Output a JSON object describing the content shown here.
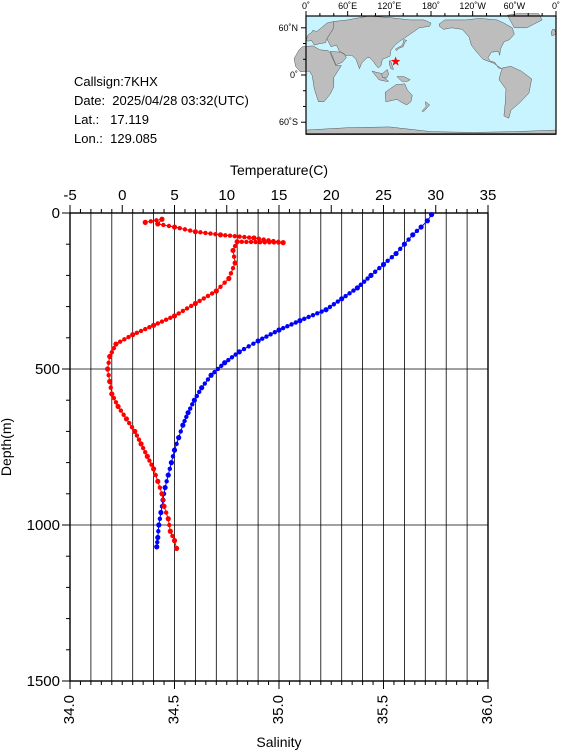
{
  "info": {
    "callsign": "Callsign:7KHX",
    "date": "Date:  2025/04/28 03:32(UTC)",
    "lat": "Lat.:   17.119",
    "lon": "Lon.:  129.085"
  },
  "map": {
    "lon_ticks": [
      "0˚",
      "60˚E",
      "120˚E",
      "180˚",
      "120˚W",
      "60˚W",
      "0˚"
    ],
    "lat_ticks": [
      "60˚N",
      "0˚",
      "60˚S"
    ],
    "ocean_color": "#c8f4ff",
    "land_color": "#bdbdbd",
    "marker": {
      "lon": 129.085,
      "lat": 17.119,
      "color": "#ff0000",
      "icon": "star-icon"
    }
  },
  "chart_data": {
    "type": "line",
    "title": "",
    "temperature_axis": {
      "label": "Temperature(C)",
      "range": [
        -5,
        35
      ],
      "ticks": [
        "-5",
        "0",
        "5",
        "10",
        "15",
        "20",
        "25",
        "30",
        "35"
      ]
    },
    "salinity_axis": {
      "label": "Salinity",
      "range": [
        34.0,
        36.0
      ],
      "ticks": [
        "34.0",
        "34.5",
        "35.0",
        "35.5",
        "36.0"
      ]
    },
    "depth_axis": {
      "label": "Depth(m)",
      "range": [
        0,
        1500
      ],
      "ticks": [
        "0",
        "500",
        "1000",
        "1500"
      ]
    },
    "grid": true,
    "series": [
      {
        "name": "",
        "quantity": "temperature",
        "color": "#0000ff",
        "points": [
          [
            29.6,
            5
          ],
          [
            29.2,
            25
          ],
          [
            28.6,
            45
          ],
          [
            27.8,
            70
          ],
          [
            27.0,
            100
          ],
          [
            26.2,
            130
          ],
          [
            25.0,
            165
          ],
          [
            23.8,
            200
          ],
          [
            22.5,
            240
          ],
          [
            21.0,
            275
          ],
          [
            19.5,
            310
          ],
          [
            17.0,
            345
          ],
          [
            15.0,
            375
          ],
          [
            13.0,
            410
          ],
          [
            11.2,
            445
          ],
          [
            9.8,
            480
          ],
          [
            8.5,
            520
          ],
          [
            7.6,
            560
          ],
          [
            6.9,
            600
          ],
          [
            6.3,
            640
          ],
          [
            5.8,
            680
          ],
          [
            5.4,
            720
          ],
          [
            5.0,
            760
          ],
          [
            4.7,
            800
          ],
          [
            4.4,
            840
          ],
          [
            4.1,
            880
          ],
          [
            3.9,
            920
          ],
          [
            3.7,
            960
          ],
          [
            3.5,
            1000
          ],
          [
            3.4,
            1040
          ],
          [
            3.3,
            1070
          ]
        ]
      },
      {
        "name": "",
        "quantity": "salinity",
        "color": "#ff0000",
        "points": [
          [
            34.36,
            30
          ],
          [
            34.44,
            20
          ],
          [
            34.42,
            35
          ],
          [
            34.5,
            45
          ],
          [
            34.6,
            60
          ],
          [
            34.72,
            70
          ],
          [
            34.88,
            80
          ],
          [
            35.02,
            95
          ],
          [
            34.8,
            92
          ],
          [
            34.78,
            120
          ],
          [
            34.79,
            160
          ],
          [
            34.76,
            210
          ],
          [
            34.7,
            250
          ],
          [
            34.6,
            290
          ],
          [
            34.5,
            330
          ],
          [
            34.4,
            360
          ],
          [
            34.3,
            390
          ],
          [
            34.22,
            420
          ],
          [
            34.19,
            460
          ],
          [
            34.18,
            500
          ],
          [
            34.19,
            540
          ],
          [
            34.2,
            580
          ],
          [
            34.23,
            620
          ],
          [
            34.27,
            660
          ],
          [
            34.31,
            700
          ],
          [
            34.34,
            740
          ],
          [
            34.37,
            780
          ],
          [
            34.4,
            820
          ],
          [
            34.42,
            860
          ],
          [
            34.44,
            900
          ],
          [
            34.45,
            940
          ],
          [
            34.47,
            980
          ],
          [
            34.48,
            1020
          ],
          [
            34.5,
            1050
          ],
          [
            34.51,
            1075
          ]
        ]
      }
    ]
  }
}
